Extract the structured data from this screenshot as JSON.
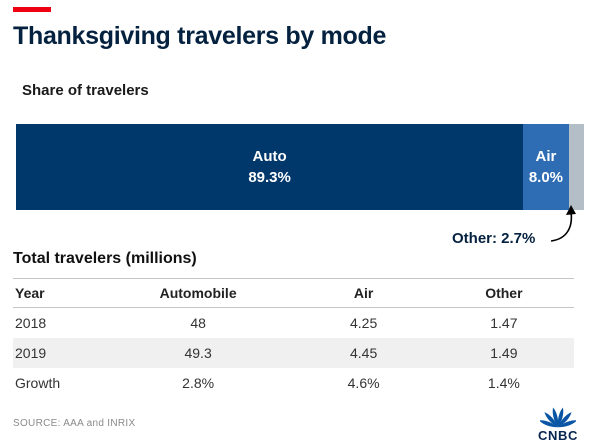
{
  "header": {
    "title": "Thanksgiving travelers by mode"
  },
  "colors": {
    "accent_red": "#ee0012",
    "logo_blue": "#0b56a4",
    "auto_navy": "#00386b",
    "air_blue": "#2e6db4",
    "other_gray": "#b3bec6"
  },
  "chart_data": {
    "type": "bar",
    "orientation": "horizontal-stacked",
    "title": "Share of travelers",
    "total": 100,
    "unit": "percent",
    "segments": [
      {
        "label": "Auto",
        "value": 89.3,
        "pct_label": "89.3%",
        "color": "#00386b",
        "show_label": true
      },
      {
        "label": "Air",
        "value": 8.0,
        "pct_label": "8.0%",
        "color": "#2e6db4",
        "show_label": true
      },
      {
        "label": "Other",
        "value": 2.7,
        "pct_label": "2.7%",
        "color": "#b3bec6",
        "show_label": false
      }
    ],
    "annotation": "Other: 2.7%"
  },
  "table": {
    "title": "Total travelers (millions)",
    "columns": [
      "Year",
      "Automobile",
      "Air",
      "Other"
    ],
    "rows": [
      [
        "2018",
        "48",
        "4.25",
        "1.47"
      ],
      [
        "2019",
        "49.3",
        "4.45",
        "1.49"
      ],
      [
        "Growth",
        "2.8%",
        "4.6%",
        "1.4%"
      ]
    ]
  },
  "footer": {
    "source": "SOURCE: AAA and INRIX",
    "logo_text": "CNBC"
  }
}
